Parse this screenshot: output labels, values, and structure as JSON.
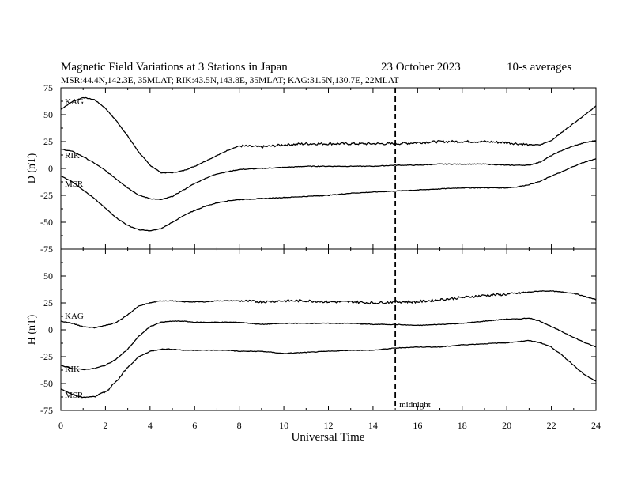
{
  "header": {
    "title": "Magnetic Field Variations at 3 Stations in Japan",
    "date": "23 October 2023",
    "averaging": "10-s averages",
    "stations_line": "MSR:44.4N,142.3E, 35MLAT;  RIK:43.5N,143.8E, 35MLAT;  KAG:31.5N,130.7E, 22MLAT"
  },
  "chart_data": [
    {
      "type": "line",
      "panel": "top",
      "ylabel": "D (nT)",
      "ylim": [
        -75,
        75
      ],
      "yticks": [
        "75",
        "50",
        "25",
        "0",
        "-25",
        "-50",
        "-75"
      ],
      "xlim": [
        0,
        24
      ],
      "series": [
        {
          "name": "KAG",
          "x": [
            0,
            0.5,
            1,
            1.5,
            2,
            2.5,
            3,
            3.5,
            4,
            4.5,
            5,
            5.5,
            6,
            6.5,
            7,
            7.5,
            8,
            9,
            10,
            11,
            12,
            13,
            14,
            15,
            16,
            17,
            18,
            19,
            20,
            20.5,
            21,
            21.5,
            22,
            22.5,
            23,
            23.5,
            24
          ],
          "y": [
            55,
            62,
            66,
            64,
            56,
            44,
            30,
            15,
            3,
            -4,
            -4,
            -2,
            2,
            7,
            12,
            17,
            21,
            20,
            22,
            23,
            23,
            23,
            23,
            23,
            24,
            25,
            25,
            25,
            24,
            23,
            22,
            22,
            26,
            34,
            42,
            50,
            58
          ]
        },
        {
          "name": "RIK",
          "x": [
            0,
            0.5,
            1,
            1.5,
            2,
            2.5,
            3,
            3.5,
            4,
            4.5,
            5,
            5.5,
            6,
            6.5,
            7,
            7.5,
            8,
            9,
            10,
            11,
            12,
            13,
            14,
            15,
            16,
            17,
            18,
            19,
            20,
            20.5,
            21,
            21.5,
            22,
            22.5,
            23,
            23.5,
            24
          ],
          "y": [
            18,
            16,
            11,
            5,
            -2,
            -10,
            -18,
            -25,
            -28,
            -29,
            -26,
            -20,
            -14,
            -9,
            -5,
            -3,
            -1,
            0,
            1,
            2,
            2,
            2,
            2,
            3,
            3,
            4,
            4,
            4,
            3,
            3,
            3,
            6,
            12,
            17,
            21,
            24,
            26
          ]
        },
        {
          "name": "MSR",
          "x": [
            0,
            0.5,
            1,
            1.5,
            2,
            2.5,
            3,
            3.5,
            4,
            4.5,
            5,
            5.5,
            6,
            6.5,
            7,
            7.5,
            8,
            9,
            10,
            11,
            12,
            13,
            14,
            15,
            16,
            17,
            18,
            19,
            20,
            20.5,
            21,
            21.5,
            22,
            22.5,
            23,
            23.5,
            24
          ],
          "y": [
            -7,
            -12,
            -20,
            -28,
            -37,
            -46,
            -53,
            -57,
            -58,
            -56,
            -50,
            -44,
            -39,
            -35,
            -32,
            -30,
            -29,
            -28,
            -27,
            -26,
            -25,
            -23,
            -22,
            -21,
            -20,
            -19,
            -18,
            -18,
            -18,
            -17,
            -15,
            -12,
            -7,
            -3,
            2,
            6,
            9
          ]
        }
      ],
      "annotations": []
    },
    {
      "type": "line",
      "panel": "bottom",
      "ylabel": "H (nT)",
      "ylim": [
        -75,
        75
      ],
      "yticks": [
        "50",
        "25",
        "0",
        "-25",
        "-50",
        "-75"
      ],
      "xlim": [
        0,
        24
      ],
      "xticks": [
        "0",
        "2",
        "4",
        "6",
        "8",
        "10",
        "12",
        "14",
        "16",
        "18",
        "20",
        "22",
        "24"
      ],
      "xlabel": "Universal Time",
      "series": [
        {
          "name": "KAG",
          "x": [
            0,
            0.5,
            1,
            1.5,
            2,
            2.5,
            3,
            3.5,
            4,
            4.5,
            5,
            5.5,
            6,
            6.5,
            7,
            7.5,
            8,
            9,
            10,
            11,
            12,
            13,
            14,
            15,
            16,
            17,
            18,
            19,
            20,
            20.5,
            21,
            21.5,
            22,
            22.5,
            23,
            23.5,
            24
          ],
          "y": [
            8,
            6,
            3,
            2,
            4,
            7,
            14,
            22,
            25,
            27,
            27,
            26,
            26,
            26,
            27,
            27,
            27,
            26,
            27,
            27,
            26,
            26,
            25,
            26,
            26,
            28,
            30,
            32,
            33,
            34,
            35,
            36,
            36,
            35,
            34,
            31,
            28
          ]
        },
        {
          "name": "RIK",
          "x": [
            0,
            0.5,
            1,
            1.5,
            2,
            2.5,
            3,
            3.5,
            4,
            4.5,
            5,
            5.5,
            6,
            6.5,
            7,
            7.5,
            8,
            9,
            10,
            11,
            12,
            13,
            14,
            15,
            16,
            17,
            18,
            19,
            20,
            20.5,
            21,
            21.5,
            22,
            22.5,
            23,
            23.5,
            24
          ],
          "y": [
            -33,
            -36,
            -37,
            -36,
            -33,
            -27,
            -18,
            -6,
            3,
            7,
            8,
            8,
            7,
            7,
            7,
            7,
            7,
            5,
            6,
            6,
            6,
            6,
            5,
            5,
            4,
            5,
            6,
            8,
            10,
            10,
            11,
            8,
            3,
            -2,
            -7,
            -12,
            -16
          ]
        },
        {
          "name": "MSR",
          "x": [
            0,
            0.5,
            1,
            1.5,
            2,
            2.5,
            3,
            3.5,
            4,
            4.5,
            5,
            5.5,
            6,
            6.5,
            7,
            7.5,
            8,
            9,
            10,
            11,
            12,
            13,
            14,
            15,
            16,
            17,
            18,
            19,
            20,
            20.5,
            21,
            21.5,
            22,
            22.5,
            23,
            23.5,
            24
          ],
          "y": [
            -55,
            -60,
            -63,
            -62,
            -58,
            -48,
            -35,
            -25,
            -20,
            -18,
            -18,
            -19,
            -19,
            -19,
            -19,
            -19,
            -20,
            -20,
            -22,
            -21,
            -20,
            -19,
            -19,
            -17,
            -16,
            -16,
            -14,
            -13,
            -12,
            -11,
            -10,
            -12,
            -16,
            -24,
            -33,
            -42,
            -48
          ]
        }
      ],
      "annotations": [
        {
          "x": 15,
          "text": "midnight"
        }
      ]
    }
  ],
  "colors": {
    "line": "#000000",
    "background": "#ffffff"
  }
}
